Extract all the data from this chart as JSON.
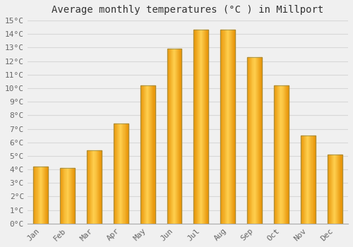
{
  "title": "Average monthly temperatures (°C ) in Millport",
  "months": [
    "Jan",
    "Feb",
    "Mar",
    "Apr",
    "May",
    "Jun",
    "Jul",
    "Aug",
    "Sep",
    "Oct",
    "Nov",
    "Dec"
  ],
  "values": [
    4.2,
    4.1,
    5.4,
    7.4,
    10.2,
    12.9,
    14.3,
    14.3,
    12.3,
    10.2,
    6.5,
    5.1
  ],
  "bar_color_edge": "#E8960A",
  "bar_color_center": "#FFD050",
  "bar_color_border": "#888855",
  "ylim": [
    0,
    15
  ],
  "background_color": "#f0f0f0",
  "grid_color": "#d8d8d8",
  "title_fontsize": 10,
  "tick_fontsize": 8,
  "tick_color": "#666666",
  "figsize": [
    5.0,
    3.5
  ],
  "dpi": 100
}
